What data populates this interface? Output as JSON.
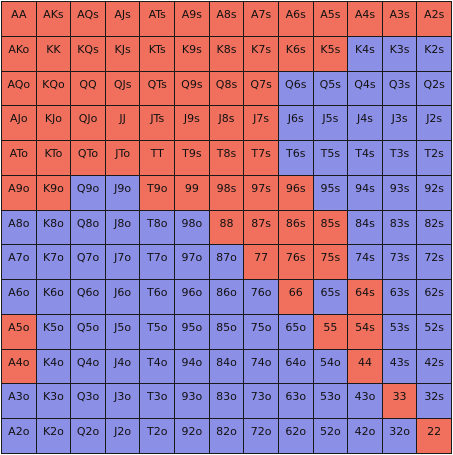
{
  "colors": {
    "selected": "#f0705d",
    "unselected": "#8c8fe6",
    "border": "#1a1a1a",
    "text": "#111111"
  },
  "legend": {
    "r": "selected",
    "b": "unselected"
  },
  "grid": {
    "rows": [
      {
        "hands": [
          "AA",
          "AKs",
          "AQs",
          "AJs",
          "ATs",
          "A9s",
          "A8s",
          "A7s",
          "A6s",
          "A5s",
          "A4s",
          "A3s",
          "A2s"
        ],
        "states": "rrrrrrrrrrrrr"
      },
      {
        "hands": [
          "AKo",
          "KK",
          "KQs",
          "KJs",
          "KTs",
          "K9s",
          "K8s",
          "K7s",
          "K6s",
          "K5s",
          "K4s",
          "K3s",
          "K2s"
        ],
        "states": "rrrrrrrrrrbbb"
      },
      {
        "hands": [
          "AQo",
          "KQo",
          "QQ",
          "QJs",
          "QTs",
          "Q9s",
          "Q8s",
          "Q7s",
          "Q6s",
          "Q5s",
          "Q4s",
          "Q3s",
          "Q2s"
        ],
        "states": "rrrrrrrrbbbbb"
      },
      {
        "hands": [
          "AJo",
          "KJo",
          "QJo",
          "JJ",
          "JTs",
          "J9s",
          "J8s",
          "J7s",
          "J6s",
          "J5s",
          "J4s",
          "J3s",
          "J2s"
        ],
        "states": "rrrrrrrrbbbbb"
      },
      {
        "hands": [
          "ATo",
          "KTo",
          "QTo",
          "JTo",
          "TT",
          "T9s",
          "T8s",
          "T7s",
          "T6s",
          "T5s",
          "T4s",
          "T3s",
          "T2s"
        ],
        "states": "rrrrrrrrbbbbb"
      },
      {
        "hands": [
          "A9o",
          "K9o",
          "Q9o",
          "J9o",
          "T9o",
          "99",
          "98s",
          "97s",
          "96s",
          "95s",
          "94s",
          "93s",
          "92s"
        ],
        "states": "rrbbrrrrrbbbb"
      },
      {
        "hands": [
          "A8o",
          "K8o",
          "Q8o",
          "J8o",
          "T8o",
          "98o",
          "88",
          "87s",
          "86s",
          "85s",
          "84s",
          "83s",
          "82s"
        ],
        "states": "bbbbbbrrrrbbb"
      },
      {
        "hands": [
          "A7o",
          "K7o",
          "Q7o",
          "J7o",
          "T7o",
          "97o",
          "87o",
          "77",
          "76s",
          "75s",
          "74s",
          "73s",
          "72s"
        ],
        "states": "bbbbbbbrrrbbb"
      },
      {
        "hands": [
          "A6o",
          "K6o",
          "Q6o",
          "J6o",
          "T6o",
          "96o",
          "86o",
          "76o",
          "66",
          "65s",
          "64s",
          "63s",
          "62s"
        ],
        "states": "bbbbbbbbrbrbb"
      },
      {
        "hands": [
          "A5o",
          "K5o",
          "Q5o",
          "J5o",
          "T5o",
          "95o",
          "85o",
          "75o",
          "65o",
          "55",
          "54s",
          "53s",
          "52s"
        ],
        "states": "rbbbbbbbbrrbb"
      },
      {
        "hands": [
          "A4o",
          "K4o",
          "Q4o",
          "J4o",
          "T4o",
          "94o",
          "84o",
          "74o",
          "64o",
          "54o",
          "44",
          "43s",
          "42s"
        ],
        "states": "rbbbbbbbbbrbb"
      },
      {
        "hands": [
          "A3o",
          "K3o",
          "Q3o",
          "J3o",
          "T3o",
          "93o",
          "83o",
          "73o",
          "63o",
          "53o",
          "43o",
          "33",
          "32s"
        ],
        "states": "bbbbbbbbbbbrb"
      },
      {
        "hands": [
          "A2o",
          "K2o",
          "Q2o",
          "J2o",
          "T2o",
          "92o",
          "82o",
          "72o",
          "62o",
          "52o",
          "42o",
          "32o",
          "22"
        ],
        "states": "bbbbbbbbbbbbr"
      }
    ]
  }
}
